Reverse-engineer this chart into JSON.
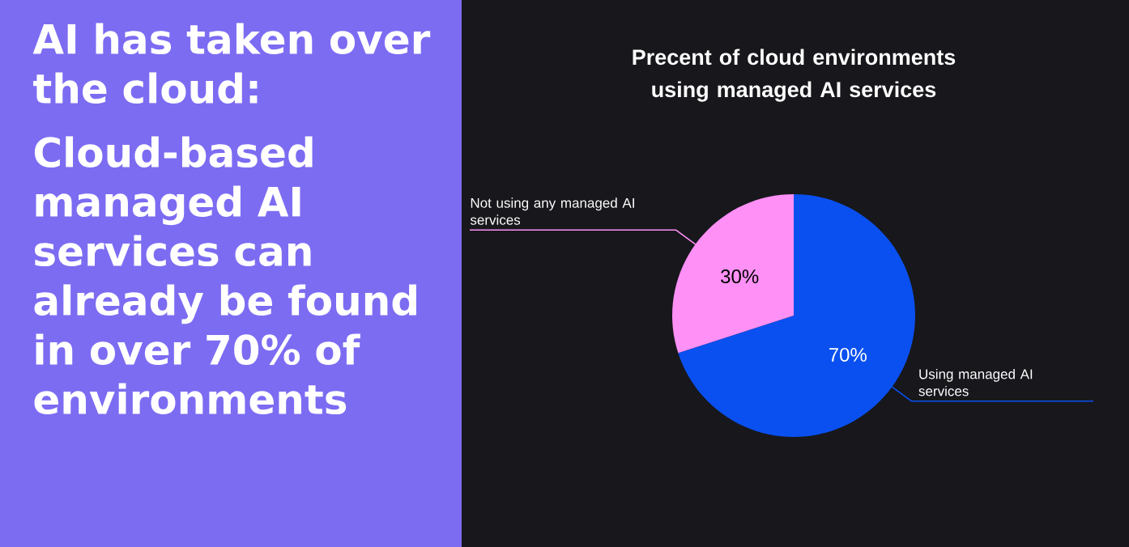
{
  "chart_data": {
    "type": "pie",
    "title": "Precent of cloud environments using managed AI services",
    "annotations": [
      "AI has taken over the cloud:",
      "Cloud-based managed AI services can already be found in over 70% of environments"
    ],
    "categories": [
      "Using managed AI services",
      "Not using any managed AI services"
    ],
    "values": [
      70,
      30
    ],
    "colors": [
      "#0a50f0",
      "#ff90f6"
    ],
    "value_labels": [
      "70%",
      "30%"
    ]
  }
}
